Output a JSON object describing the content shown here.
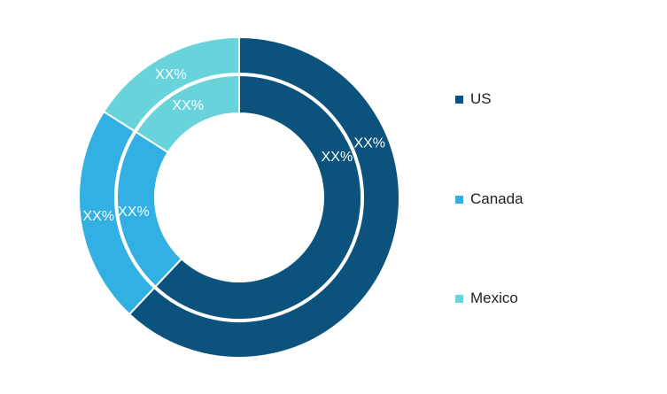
{
  "chart_data": {
    "type": "pie",
    "variant": "double-donut",
    "categories": [
      "US",
      "Canada",
      "Mexico"
    ],
    "colors": [
      "#0b527c",
      "#32b0e3",
      "#69d3dc"
    ],
    "series": [
      {
        "ring": "outer",
        "values": [
          62,
          22,
          16
        ],
        "labels": [
          "XX%",
          "XX%",
          "XX%"
        ]
      },
      {
        "ring": "inner",
        "values": [
          62,
          22,
          16
        ],
        "labels": [
          "XX%",
          "XX%",
          "XX%"
        ]
      }
    ],
    "legend_position": "right"
  }
}
